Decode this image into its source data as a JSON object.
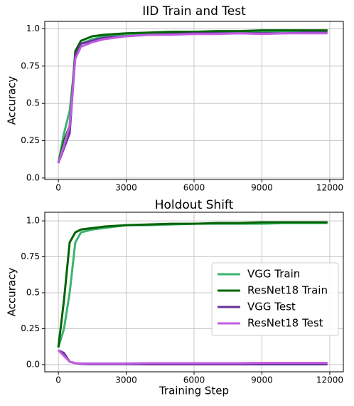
{
  "chart_data": [
    {
      "type": "line",
      "title": "IID Train and Test",
      "y_label": "Accuracy",
      "x": [
        0,
        250,
        500,
        750,
        1000,
        1500,
        2000,
        3000,
        4000,
        5000,
        6000,
        7000,
        8000,
        9000,
        10000,
        11000,
        11900
      ],
      "series": [
        {
          "name": "VGG Train",
          "color": "#3cb371",
          "values": [
            0.1,
            0.3,
            0.45,
            0.8,
            0.9,
            0.93,
            0.95,
            0.96,
            0.97,
            0.97,
            0.98,
            0.98,
            0.98,
            0.98,
            0.985,
            0.985,
            0.985
          ]
        },
        {
          "name": "ResNet18 Train",
          "color": "#006400",
          "values": [
            0.1,
            0.25,
            0.35,
            0.85,
            0.92,
            0.95,
            0.96,
            0.97,
            0.975,
            0.98,
            0.98,
            0.985,
            0.985,
            0.99,
            0.99,
            0.99,
            0.99
          ]
        },
        {
          "name": "VGG Test",
          "color": "#663399",
          "values": [
            0.1,
            0.2,
            0.3,
            0.82,
            0.9,
            0.92,
            0.94,
            0.95,
            0.96,
            0.965,
            0.97,
            0.97,
            0.97,
            0.97,
            0.97,
            0.975,
            0.975
          ]
        },
        {
          "name": "ResNet18 Test",
          "color": "#c05ee0",
          "values": [
            0.1,
            0.22,
            0.35,
            0.8,
            0.88,
            0.91,
            0.93,
            0.95,
            0.96,
            0.96,
            0.965,
            0.965,
            0.97,
            0.965,
            0.97,
            0.97,
            0.97
          ]
        }
      ],
      "xlim": [
        -600,
        12600
      ],
      "xticks": [
        0,
        3000,
        6000,
        9000,
        12000
      ],
      "ylim": [
        -0.01,
        1.05
      ],
      "yticks": [
        {
          "value": 0,
          "label": "0.0"
        },
        0.25,
        0.5,
        0.75,
        {
          "value": 1,
          "label": "1.0"
        }
      ],
      "grid": true
    },
    {
      "type": "line",
      "title": "Holdout Shift",
      "x_label": "Training Step",
      "y_label": "Accuracy",
      "x": [
        0,
        250,
        500,
        750,
        1000,
        1500,
        2000,
        3000,
        4000,
        5000,
        6000,
        7000,
        8000,
        9000,
        10000,
        11000,
        11900
      ],
      "series": [
        {
          "name": "VGG Train",
          "color": "#3cb371",
          "values": [
            0.12,
            0.25,
            0.5,
            0.85,
            0.92,
            0.94,
            0.95,
            0.97,
            0.97,
            0.975,
            0.98,
            0.98,
            0.98,
            0.98,
            0.985,
            0.985,
            0.985
          ]
        },
        {
          "name": "ResNet18 Train",
          "color": "#006400",
          "values": [
            0.12,
            0.45,
            0.85,
            0.92,
            0.94,
            0.95,
            0.96,
            0.97,
            0.975,
            0.98,
            0.98,
            0.985,
            0.985,
            0.99,
            0.99,
            0.99,
            0.99
          ]
        },
        {
          "name": "VGG Test",
          "color": "#663399",
          "values": [
            0.1,
            0.08,
            0.02,
            0.01,
            0.005,
            0.003,
            0.003,
            0.003,
            0.002,
            0.002,
            0.002,
            0.002,
            0.002,
            0.002,
            0.002,
            0.002,
            0.002
          ]
        },
        {
          "name": "ResNet18 Test",
          "color": "#c05ee0",
          "values": [
            0.1,
            0.06,
            0.02,
            0.01,
            0.008,
            0.008,
            0.008,
            0.008,
            0.01,
            0.01,
            0.01,
            0.01,
            0.01,
            0.012,
            0.012,
            0.012,
            0.012
          ]
        }
      ],
      "xlim": [
        -600,
        12600
      ],
      "xticks": [
        0,
        3000,
        6000,
        9000,
        12000
      ],
      "ylim": [
        -0.05,
        1.06
      ],
      "yticks": [
        {
          "value": 0,
          "label": "0.0"
        },
        0.25,
        0.5,
        0.75,
        {
          "value": 1,
          "label": "1.0"
        }
      ],
      "grid": true,
      "legend": "center right"
    }
  ]
}
